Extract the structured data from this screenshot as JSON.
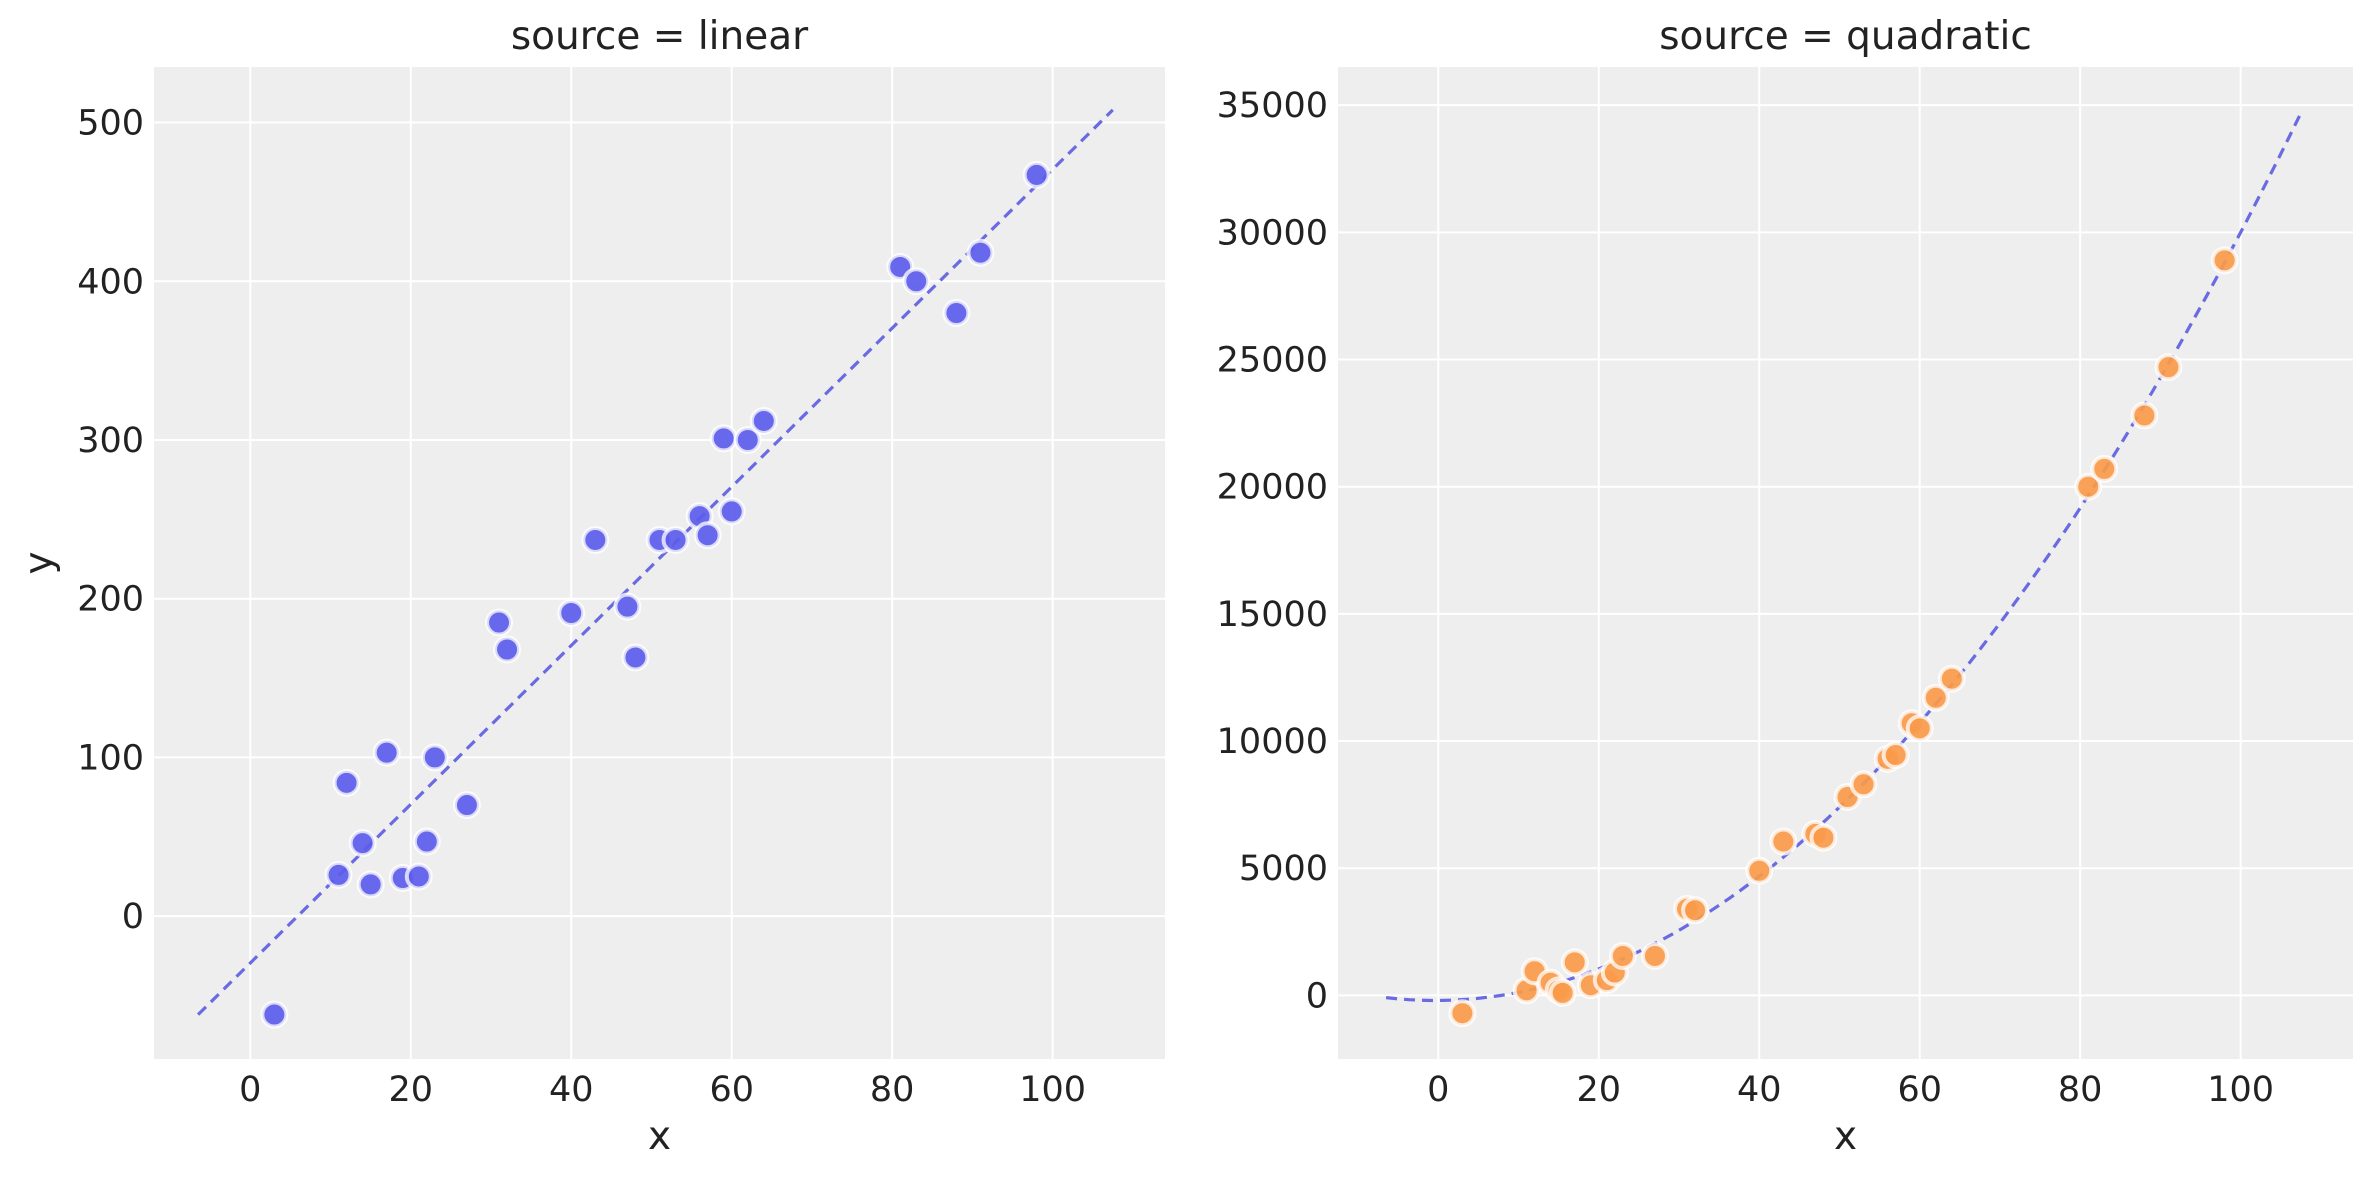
{
  "colors": {
    "background": "#ffffff",
    "panel_background": "#eeeeee",
    "grid": "#ffffff",
    "linear_points": "#5c5cec",
    "quadratic_points": "#f99a4a",
    "fit_line": "#6a6ae2",
    "marker_edge": "#ffffff"
  },
  "chart_data": [
    {
      "type": "scatter",
      "title": "source = linear",
      "xlabel": "x",
      "ylabel": "y",
      "xlim": [
        -12,
        114
      ],
      "ylim": [
        -90,
        535
      ],
      "xticks": [
        0,
        20,
        40,
        60,
        80,
        100
      ],
      "xtick_labels": [
        "0",
        "20",
        "40",
        "60",
        "80",
        "100"
      ],
      "yticks": [
        0,
        100,
        200,
        300,
        400,
        500
      ],
      "ytick_labels": [
        "0",
        "100",
        "200",
        "300",
        "400",
        "500"
      ],
      "grid": true,
      "points": {
        "x": [
          3,
          11,
          12,
          14,
          15,
          17,
          19,
          21,
          22,
          23,
          27,
          31,
          32,
          40,
          43,
          47,
          48,
          51,
          53,
          56,
          57,
          59,
          60,
          62,
          64,
          81,
          83,
          88,
          91,
          98
        ],
        "y": [
          -62,
          26,
          84,
          46,
          20,
          103,
          24,
          25,
          47,
          100,
          70,
          185,
          168,
          191,
          237,
          195,
          163,
          237,
          237,
          252,
          240,
          301,
          255,
          300,
          312,
          409,
          400,
          380,
          418,
          467
        ]
      },
      "fit": {
        "style": "dashed",
        "x": [
          -6.5,
          107.5
        ],
        "y": [
          -62,
          508
        ]
      }
    },
    {
      "type": "scatter",
      "title": "source = quadratic",
      "xlabel": "x",
      "ylabel": "",
      "xlim": [
        -12.5,
        114
      ],
      "ylim": [
        -2500,
        36500
      ],
      "xticks": [
        0,
        20,
        40,
        60,
        80,
        100
      ],
      "xtick_labels": [
        "0",
        "20",
        "40",
        "60",
        "80",
        "100"
      ],
      "yticks": [
        0,
        5000,
        10000,
        15000,
        20000,
        25000,
        30000,
        35000
      ],
      "ytick_labels": [
        "0",
        "5000",
        "10000",
        "15000",
        "20000",
        "25000",
        "30000",
        "35000"
      ],
      "grid": true,
      "points": {
        "x": [
          3,
          11,
          12,
          14,
          15,
          15.5,
          17,
          19,
          21,
          22,
          23,
          27,
          31,
          32,
          40,
          43,
          47,
          48,
          51,
          53,
          56,
          57,
          59,
          60,
          62,
          64,
          81,
          83,
          88,
          91,
          98
        ],
        "y": [
          -700,
          200,
          950,
          500,
          200,
          100,
          1300,
          400,
          600,
          900,
          1550,
          1550,
          3400,
          3350,
          4900,
          6050,
          6350,
          6200,
          7800,
          8300,
          9300,
          9450,
          10700,
          10500,
          11700,
          12450,
          20000,
          20700,
          22800,
          24700,
          28900
        ]
      },
      "fit": {
        "style": "dashed",
        "samples": 80,
        "x_range": [
          -6.5,
          107.5
        ],
        "coefficients": {
          "a": 3.0,
          "b": 2.0,
          "c": -200
        }
      }
    }
  ]
}
